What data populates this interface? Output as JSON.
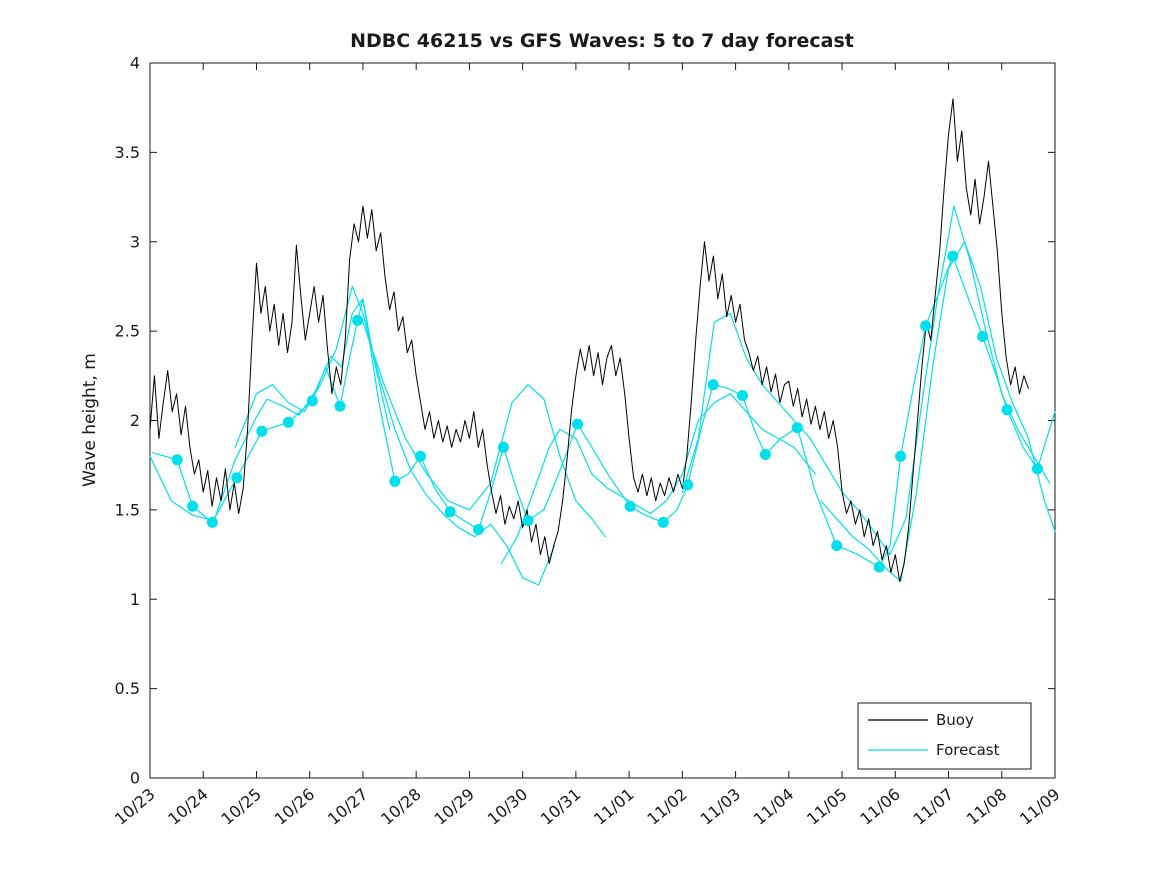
{
  "chart_data": {
    "type": "line",
    "title": "NDBC 46215 vs GFS Waves: 5 to 7 day forecast",
    "ylabel": "Wave height, m",
    "xlabel": "",
    "ylim": [
      0,
      4
    ],
    "xlim_days": [
      0,
      17
    ],
    "grid": false,
    "y_tick_values": [
      0,
      0.5,
      1,
      1.5,
      2,
      2.5,
      3,
      3.5,
      4
    ],
    "y_tick_labels": [
      "0",
      "0.5",
      "1",
      "1.5",
      "2",
      "2.5",
      "3",
      "3.5",
      "4"
    ],
    "x_tick_labels": [
      "10/23",
      "10/24",
      "10/25",
      "10/26",
      "10/27",
      "10/28",
      "10/29",
      "10/30",
      "10/31",
      "11/01",
      "11/02",
      "11/03",
      "11/04",
      "11/05",
      "11/06",
      "11/07",
      "11/08",
      "11/09"
    ],
    "legend": {
      "position": "bottom-right",
      "entries": [
        {
          "label": "Buoy",
          "color": "#000000"
        },
        {
          "label": "Forecast",
          "color": "#00e0ec"
        }
      ]
    },
    "buoy": {
      "name": "Buoy",
      "color": "#000000",
      "x_start_days": 0,
      "x_step_days": 0.0833333,
      "values": [
        1.95,
        2.25,
        1.9,
        2.1,
        2.28,
        2.05,
        2.15,
        1.92,
        2.08,
        1.85,
        1.7,
        1.78,
        1.6,
        1.72,
        1.52,
        1.68,
        1.55,
        1.73,
        1.5,
        1.65,
        1.48,
        1.62,
        1.95,
        2.45,
        2.88,
        2.6,
        2.75,
        2.5,
        2.65,
        2.42,
        2.6,
        2.38,
        2.55,
        2.98,
        2.7,
        2.45,
        2.6,
        2.75,
        2.55,
        2.7,
        2.4,
        2.15,
        2.3,
        2.2,
        2.45,
        2.9,
        3.1,
        3.0,
        3.2,
        3.02,
        3.18,
        2.95,
        3.05,
        2.8,
        2.62,
        2.72,
        2.5,
        2.58,
        2.38,
        2.45,
        2.25,
        2.1,
        1.95,
        2.05,
        1.9,
        2.0,
        1.88,
        1.97,
        1.85,
        1.95,
        1.88,
        2.0,
        1.9,
        2.05,
        1.85,
        1.95,
        1.75,
        1.6,
        1.48,
        1.58,
        1.42,
        1.52,
        1.45,
        1.55,
        1.4,
        1.5,
        1.32,
        1.42,
        1.25,
        1.35,
        1.2,
        1.3,
        1.38,
        1.55,
        1.78,
        2.05,
        2.25,
        2.4,
        2.28,
        2.42,
        2.25,
        2.38,
        2.2,
        2.35,
        2.42,
        2.25,
        2.35,
        2.15,
        1.9,
        1.68,
        1.6,
        1.7,
        1.58,
        1.68,
        1.55,
        1.65,
        1.58,
        1.68,
        1.6,
        1.7,
        1.62,
        1.8,
        2.1,
        2.45,
        2.75,
        3.0,
        2.78,
        2.92,
        2.68,
        2.82,
        2.58,
        2.7,
        2.55,
        2.65,
        2.45,
        2.38,
        2.28,
        2.36,
        2.2,
        2.3,
        2.16,
        2.26,
        2.1,
        2.2,
        2.22,
        2.08,
        2.18,
        2.02,
        2.12,
        1.98,
        2.08,
        1.95,
        2.05,
        1.9,
        2.0,
        1.85,
        1.6,
        1.48,
        1.55,
        1.42,
        1.5,
        1.35,
        1.45,
        1.3,
        1.38,
        1.22,
        1.3,
        1.15,
        1.25,
        1.1,
        1.2,
        1.4,
        1.7,
        2.0,
        2.3,
        2.55,
        2.45,
        2.7,
        2.95,
        3.3,
        3.6,
        3.8,
        3.45,
        3.62,
        3.3,
        3.15,
        3.35,
        3.1,
        3.25,
        3.45,
        3.2,
        2.95,
        2.6,
        2.35,
        2.2,
        2.3,
        2.15,
        2.25,
        2.18
      ]
    },
    "forecast": {
      "name": "Forecast",
      "color": "#00e0ec",
      "segments": [
        [
          [
            0.05,
            1.82
          ],
          [
            0.51,
            1.78
          ],
          [
            0.8,
            1.52
          ],
          [
            1.17,
            1.43
          ],
          [
            1.63,
            1.68
          ],
          [
            2.1,
            1.94
          ],
          [
            2.6,
            1.99
          ],
          [
            3.05,
            2.11
          ],
          [
            3.3,
            2.3
          ],
          [
            3.57,
            2.08
          ],
          [
            3.75,
            2.35
          ],
          [
            3.9,
            2.56
          ],
          [
            4.0,
            2.68
          ],
          [
            4.3,
            2.1
          ],
          [
            4.6,
            1.66
          ],
          [
            4.85,
            1.7
          ],
          [
            5.08,
            1.8
          ],
          [
            5.35,
            1.62
          ],
          [
            5.64,
            1.49
          ],
          [
            5.9,
            1.44
          ],
          [
            6.17,
            1.39
          ],
          [
            6.4,
            1.6
          ],
          [
            6.64,
            1.85
          ],
          [
            6.9,
            1.6
          ],
          [
            7.1,
            1.44
          ],
          [
            7.4,
            1.5
          ],
          [
            7.7,
            1.72
          ],
          [
            8.03,
            1.98
          ],
          [
            8.3,
            1.85
          ],
          [
            8.6,
            1.7
          ],
          [
            9.02,
            1.52
          ],
          [
            9.3,
            1.47
          ],
          [
            9.64,
            1.43
          ],
          [
            9.9,
            1.5
          ],
          [
            10.1,
            1.64
          ],
          [
            10.35,
            1.95
          ],
          [
            10.58,
            2.2
          ],
          [
            10.85,
            2.18
          ],
          [
            11.13,
            2.14
          ],
          [
            11.35,
            1.95
          ],
          [
            11.56,
            1.81
          ],
          [
            11.85,
            1.9
          ],
          [
            12.16,
            1.96
          ],
          [
            12.5,
            1.6
          ],
          [
            12.9,
            1.3
          ],
          [
            13.3,
            1.25
          ],
          [
            13.7,
            1.18
          ],
          [
            13.9,
            1.3
          ],
          [
            14.1,
            1.8
          ],
          [
            14.35,
            2.2
          ],
          [
            14.57,
            2.53
          ],
          [
            14.8,
            2.7
          ],
          [
            15.08,
            2.92
          ],
          [
            15.35,
            2.7
          ],
          [
            15.64,
            2.47
          ],
          [
            15.9,
            2.25
          ],
          [
            16.1,
            2.06
          ],
          [
            16.4,
            1.85
          ],
          [
            16.67,
            1.73
          ],
          [
            17.0,
            2.05
          ]
        ],
        [
          [
            0.0,
            1.8
          ],
          [
            0.4,
            1.55
          ],
          [
            0.8,
            1.47
          ],
          [
            1.2,
            1.44
          ],
          [
            1.6,
            1.78
          ],
          [
            2.0,
            2.02
          ],
          [
            2.2,
            2.12
          ],
          [
            2.5,
            2.08
          ],
          [
            2.8,
            2.03
          ],
          [
            3.1,
            2.16
          ],
          [
            3.4,
            2.36
          ],
          [
            3.6,
            2.3
          ],
          [
            3.8,
            2.6
          ],
          [
            4.0,
            2.68
          ],
          [
            4.2,
            2.35
          ],
          [
            4.5,
            1.95
          ]
        ],
        [
          [
            1.6,
            1.85
          ],
          [
            2.0,
            2.15
          ],
          [
            2.3,
            2.2
          ],
          [
            2.6,
            2.1
          ],
          [
            2.9,
            2.05
          ],
          [
            3.2,
            2.2
          ],
          [
            3.5,
            2.4
          ],
          [
            3.8,
            2.75
          ],
          [
            4.0,
            2.6
          ],
          [
            4.3,
            2.25
          ],
          [
            4.6,
            1.95
          ],
          [
            4.9,
            1.72
          ],
          [
            5.2,
            1.58
          ],
          [
            5.5,
            1.48
          ],
          [
            5.8,
            1.4
          ],
          [
            6.1,
            1.35
          ],
          [
            6.4,
            1.42
          ],
          [
            6.7,
            1.3
          ],
          [
            7.0,
            1.12
          ],
          [
            7.3,
            1.08
          ],
          [
            7.6,
            1.3
          ]
        ],
        [
          [
            4.0,
            2.55
          ],
          [
            4.4,
            2.2
          ],
          [
            4.8,
            1.9
          ],
          [
            5.2,
            1.7
          ],
          [
            5.6,
            1.55
          ],
          [
            6.0,
            1.5
          ],
          [
            6.4,
            1.65
          ],
          [
            6.8,
            2.1
          ],
          [
            7.1,
            2.2
          ],
          [
            7.4,
            2.12
          ],
          [
            7.7,
            1.8
          ],
          [
            8.0,
            1.55
          ],
          [
            8.3,
            1.45
          ],
          [
            8.55,
            1.35
          ]
        ],
        [
          [
            6.6,
            1.2
          ],
          [
            6.9,
            1.35
          ],
          [
            7.2,
            1.6
          ],
          [
            7.5,
            1.85
          ],
          [
            7.7,
            1.95
          ],
          [
            8.0,
            1.9
          ],
          [
            8.3,
            1.7
          ],
          [
            8.6,
            1.62
          ],
          [
            9.0,
            1.55
          ],
          [
            9.4,
            1.48
          ],
          [
            9.7,
            1.55
          ],
          [
            10.0,
            1.7
          ],
          [
            10.3,
            2.0
          ],
          [
            10.6,
            2.1
          ],
          [
            10.9,
            2.15
          ],
          [
            11.2,
            2.05
          ],
          [
            11.5,
            1.95
          ],
          [
            11.8,
            1.9
          ],
          [
            12.1,
            1.85
          ],
          [
            12.5,
            1.7
          ]
        ],
        [
          [
            10.0,
            1.6
          ],
          [
            10.3,
            1.9
          ],
          [
            10.6,
            2.55
          ],
          [
            10.9,
            2.6
          ],
          [
            11.2,
            2.35
          ],
          [
            11.5,
            2.2
          ],
          [
            11.8,
            2.1
          ],
          [
            12.1,
            2.0
          ],
          [
            12.4,
            1.9
          ],
          [
            12.7,
            1.75
          ],
          [
            13.0,
            1.6
          ],
          [
            13.3,
            1.5
          ],
          [
            13.6,
            1.38
          ],
          [
            13.9,
            1.25
          ],
          [
            14.2,
            1.45
          ],
          [
            14.5,
            2.1
          ],
          [
            14.8,
            2.7
          ],
          [
            15.1,
            3.2
          ],
          [
            15.4,
            2.9
          ],
          [
            15.7,
            2.5
          ],
          [
            16.0,
            2.15
          ],
          [
            16.3,
            1.95
          ],
          [
            16.6,
            1.8
          ],
          [
            16.9,
            1.65
          ]
        ],
        [
          [
            12.6,
            1.55
          ],
          [
            12.9,
            1.45
          ],
          [
            13.2,
            1.35
          ],
          [
            13.5,
            1.28
          ],
          [
            13.8,
            1.18
          ],
          [
            14.1,
            1.1
          ],
          [
            14.4,
            1.6
          ],
          [
            14.7,
            2.3
          ],
          [
            15.0,
            2.85
          ],
          [
            15.3,
            3.0
          ],
          [
            15.6,
            2.75
          ],
          [
            15.9,
            2.35
          ],
          [
            16.2,
            2.1
          ],
          [
            16.5,
            1.9
          ],
          [
            16.8,
            1.55
          ],
          [
            17.0,
            1.38
          ]
        ]
      ]
    },
    "forecast_markers": {
      "color": "#00e0ec",
      "points": [
        [
          0.51,
          1.78
        ],
        [
          0.8,
          1.52
        ],
        [
          1.17,
          1.43
        ],
        [
          1.63,
          1.68
        ],
        [
          2.1,
          1.94
        ],
        [
          2.6,
          1.99
        ],
        [
          3.05,
          2.11
        ],
        [
          3.57,
          2.08
        ],
        [
          3.9,
          2.56
        ],
        [
          4.6,
          1.66
        ],
        [
          5.08,
          1.8
        ],
        [
          5.64,
          1.49
        ],
        [
          6.17,
          1.39
        ],
        [
          6.64,
          1.85
        ],
        [
          7.1,
          1.44
        ],
        [
          8.03,
          1.98
        ],
        [
          9.02,
          1.52
        ],
        [
          9.64,
          1.43
        ],
        [
          10.1,
          1.64
        ],
        [
          10.58,
          2.2
        ],
        [
          11.13,
          2.14
        ],
        [
          11.56,
          1.81
        ],
        [
          12.16,
          1.96
        ],
        [
          12.9,
          1.3
        ],
        [
          13.7,
          1.18
        ],
        [
          14.1,
          1.8
        ],
        [
          14.57,
          2.53
        ],
        [
          15.08,
          2.92
        ],
        [
          15.64,
          2.47
        ],
        [
          16.1,
          2.06
        ],
        [
          16.67,
          1.73
        ]
      ]
    }
  }
}
